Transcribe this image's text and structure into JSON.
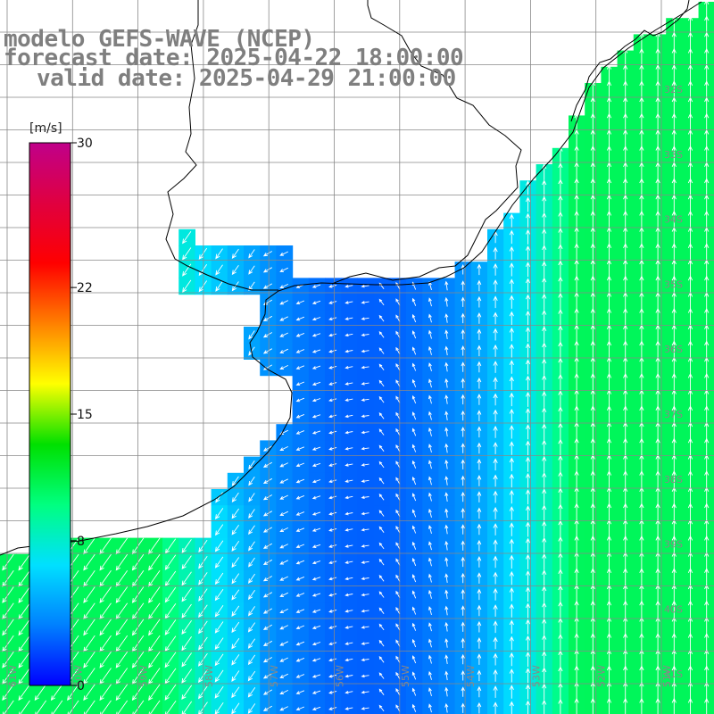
{
  "title": {
    "model": "modelo GEFS-WAVE (NCEP)",
    "forecast_date": "forecast date: 2025-04-22 18:00:00",
    "valid_date": "valid date: 2025-04-29 21:00:00"
  },
  "colorbar": {
    "unit": "[m/s]",
    "ticks": [
      {
        "value": 30,
        "label": "30"
      },
      {
        "value": 22,
        "label": "22"
      },
      {
        "value": 15,
        "label": "15"
      },
      {
        "value": 8,
        "label": "8"
      },
      {
        "value": 0,
        "label": "0"
      }
    ],
    "colors": [
      "#0000ff",
      "#0080ff",
      "#00e0ff",
      "#00ff80",
      "#00e000",
      "#ffff00",
      "#ff8000",
      "#ff0000",
      "#e00040",
      "#c0008a"
    ]
  },
  "lat_labels": [
    "32S",
    "33S",
    "34S",
    "35S",
    "36S",
    "37S",
    "38S",
    "39S",
    "40S",
    "41S"
  ],
  "lon_labels": [
    "61W",
    "60W",
    "59W",
    "58W",
    "57W",
    "56W",
    "55W",
    "54W",
    "53W",
    "52W",
    "51W"
  ],
  "field": {
    "variable": "wind speed",
    "units": "m/s"
  }
}
